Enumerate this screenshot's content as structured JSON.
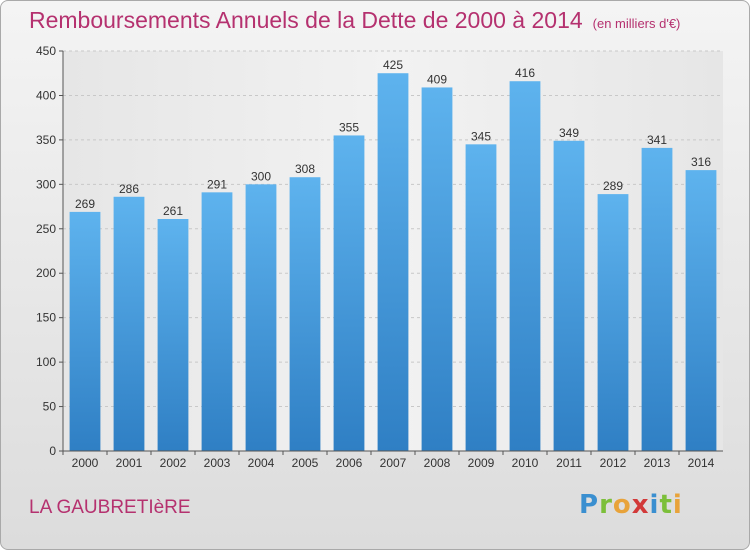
{
  "header": {
    "title": "Remboursements Annuels de la Dette de 2000 à 2014",
    "unit": "(en milliers d'€)"
  },
  "footer": {
    "city": "LA GAUBRETIèRE",
    "logo_letters": [
      {
        "char": "P",
        "color": "#3a8fd0"
      },
      {
        "char": "r",
        "color": "#7cbf3a"
      },
      {
        "char": "o",
        "color": "#e8a33a"
      },
      {
        "char": "x",
        "color": "#d23a3a"
      },
      {
        "char": "i",
        "color": "#3a8fd0"
      },
      {
        "char": "t",
        "color": "#7cbf3a"
      },
      {
        "char": "i",
        "color": "#e8a33a"
      }
    ]
  },
  "chart_data": {
    "type": "bar",
    "title": "Remboursements Annuels de la Dette de 2000 à 2014",
    "categories": [
      "2000",
      "2001",
      "2002",
      "2003",
      "2004",
      "2005",
      "2006",
      "2007",
      "2008",
      "2009",
      "2010",
      "2011",
      "2012",
      "2013",
      "2014"
    ],
    "values": [
      269,
      286,
      261,
      291,
      300,
      308,
      355,
      425,
      409,
      345,
      416,
      349,
      289,
      341,
      316
    ],
    "ylim": [
      0,
      450
    ],
    "yticks": [
      0,
      50,
      100,
      150,
      200,
      250,
      300,
      350,
      400,
      450
    ],
    "grid": true,
    "bar_color": "#4a9fe0"
  }
}
